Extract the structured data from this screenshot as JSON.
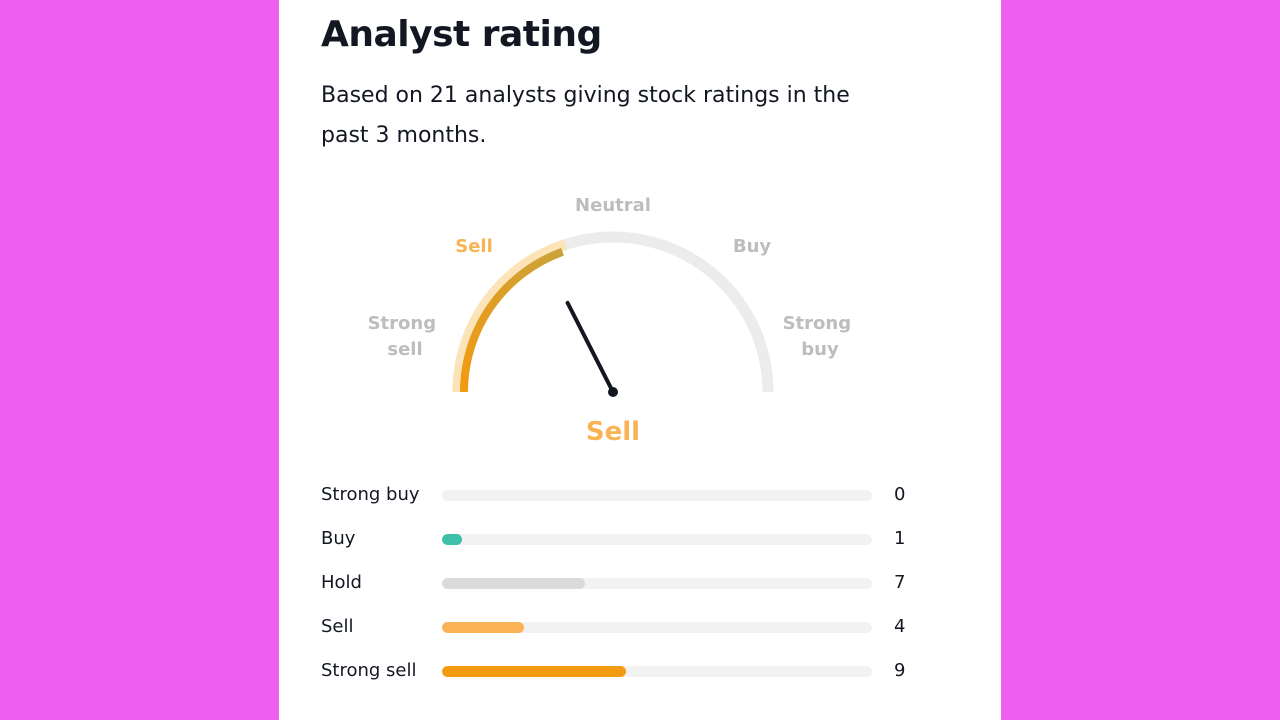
{
  "card": {
    "title": "Analyst rating",
    "subtitle": "Based on 21 analysts giving stock ratings in the past 3 months."
  },
  "gauge": {
    "labels": {
      "strong_sell": [
        "Strong",
        "sell"
      ],
      "sell": "Sell",
      "neutral": "Neutral",
      "buy": "Buy",
      "strong_buy": [
        "Strong",
        "buy"
      ]
    },
    "active_segment": "sell",
    "needle_value": 0.35,
    "result": "Sell",
    "colors": {
      "track": "#ececec",
      "active_light": "#fce3b8",
      "active_dark": "#f29a12",
      "needle": "#131722",
      "result": "#f9b354"
    }
  },
  "breakdown": {
    "max": 21,
    "rows": [
      {
        "label": "Strong buy",
        "count": "0",
        "value": 0,
        "color": "#f2f2f2"
      },
      {
        "label": "Buy",
        "count": "1",
        "value": 1,
        "color": "#3ebfa8"
      },
      {
        "label": "Hold",
        "count": "7",
        "value": 7,
        "color": "#dadada"
      },
      {
        "label": "Sell",
        "count": "4",
        "value": 4,
        "color": "#f9b354"
      },
      {
        "label": "Strong sell",
        "count": "9",
        "value": 9,
        "color": "#f29a12"
      }
    ]
  }
}
